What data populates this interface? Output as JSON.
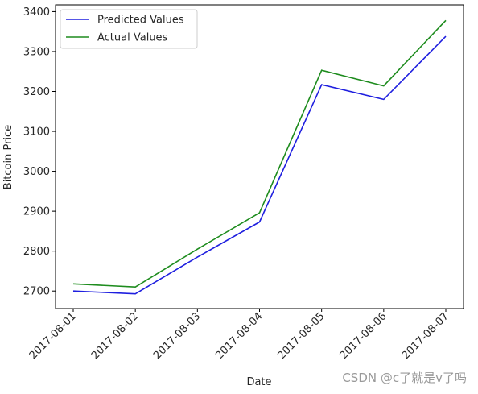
{
  "chart_data": {
    "type": "line",
    "x": [
      "2017-08-01",
      "2017-08-02",
      "2017-08-03",
      "2017-08-04",
      "2017-08-05",
      "2017-08-06",
      "2017-08-07"
    ],
    "series": [
      {
        "name": "Predicted Values",
        "color": "#1f1fdf",
        "values": [
          2700,
          2693,
          2785,
          2873,
          3217,
          3180,
          3338
        ]
      },
      {
        "name": "Actual Values",
        "color": "#1e8c1e",
        "values": [
          2718,
          2710,
          2805,
          2896,
          3253,
          3214,
          3378
        ]
      }
    ],
    "title": "",
    "xlabel": "Date",
    "ylabel": "Bitcoin Price",
    "ylim": [
      2656,
      3417
    ],
    "yticks": [
      2700,
      2800,
      2900,
      3000,
      3100,
      3200,
      3300,
      3400
    ],
    "legend": "upper-left",
    "grid": false
  },
  "watermark": "CSDN @c了就是v了吗"
}
